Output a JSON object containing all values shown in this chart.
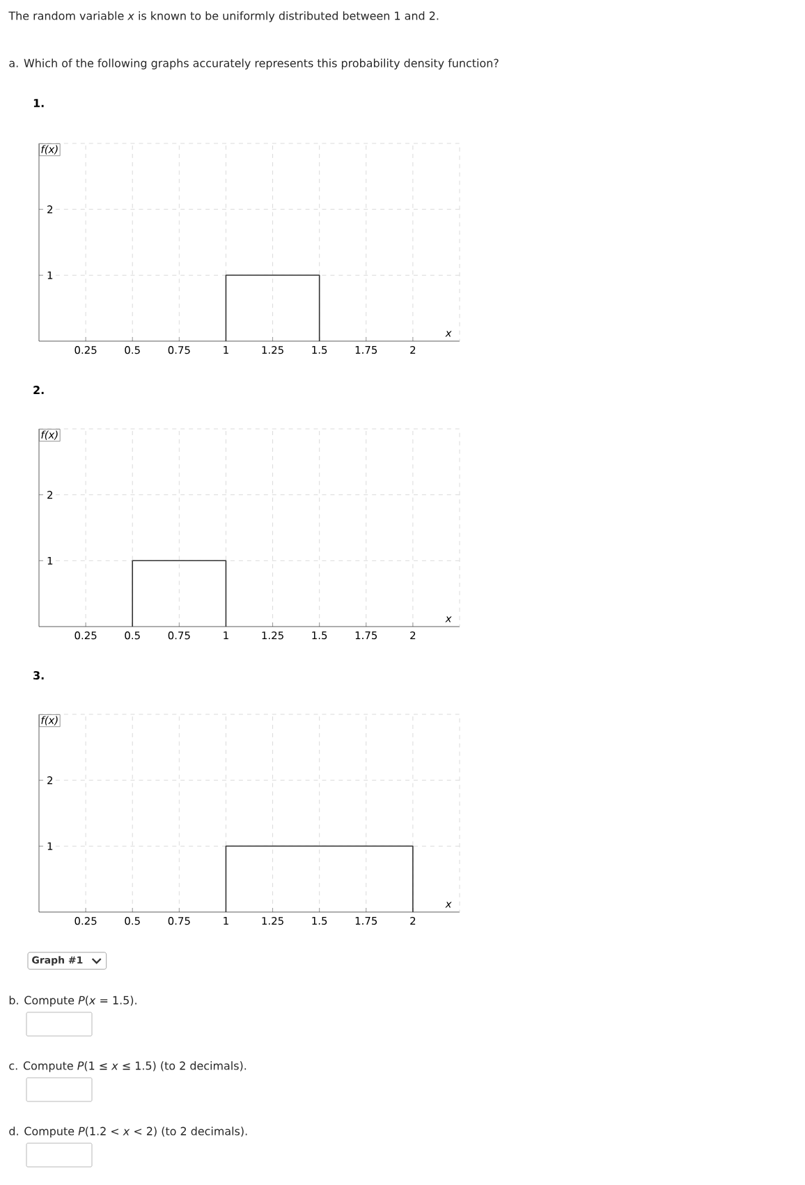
{
  "chart_data": [
    {
      "type": "line",
      "title": "1.",
      "xlabel": "x",
      "ylabel": "f(x)",
      "annotations": [
        "The random variable *x* is known to be uniformly distributed between 1 and 2.",
        "a. Which of the following graphs accurately represents this probability density function?"
      ],
      "series": [
        {
          "color": "#333333",
          "x": [
            1,
            1,
            1.5,
            1.5
          ],
          "values": [
            0,
            1,
            1,
            0
          ]
        }
      ],
      "xlim": [
        0,
        2.25
      ],
      "ylim": [
        0,
        3
      ],
      "xticks": [
        0.25,
        0.5,
        0.75,
        1,
        1.25,
        1.5,
        1.75,
        2
      ],
      "yticks": [
        1,
        2
      ],
      "grid": true
    },
    {
      "type": "line",
      "title": "2.",
      "xlabel": "x",
      "ylabel": "f(x)",
      "series": [
        {
          "color": "#333333",
          "x": [
            0.5,
            0.5,
            1,
            1
          ],
          "values": [
            0,
            1,
            1,
            0
          ]
        }
      ],
      "xlim": [
        0,
        2.25
      ],
      "ylim": [
        0,
        3
      ],
      "xticks": [
        0.25,
        0.5,
        0.75,
        1,
        1.25,
        1.5,
        1.75,
        2
      ],
      "yticks": [
        1,
        2
      ],
      "grid": true
    },
    {
      "type": "line",
      "title": "3.",
      "xlabel": "x",
      "ylabel": "f(x)",
      "annotations": [
        "Graph #1",
        "b. Compute *P*(*x* = 1.5).",
        "c. Compute *P*(1 ≤ *x* ≤ 1.5) (to 2 decimals).",
        "d. Compute *P*(1.2 < *x* < 2) (to 2 decimals)."
      ],
      "series": [
        {
          "color": "#333333",
          "x": [
            1,
            1,
            2,
            2
          ],
          "values": [
            0,
            1,
            1,
            0
          ]
        }
      ],
      "xlim": [
        0,
        2.25
      ],
      "ylim": [
        0,
        3
      ],
      "xticks": [
        0.25,
        0.5,
        0.75,
        1,
        1.25,
        1.5,
        1.75,
        2
      ],
      "yticks": [
        1,
        2
      ],
      "grid": true
    }
  ]
}
